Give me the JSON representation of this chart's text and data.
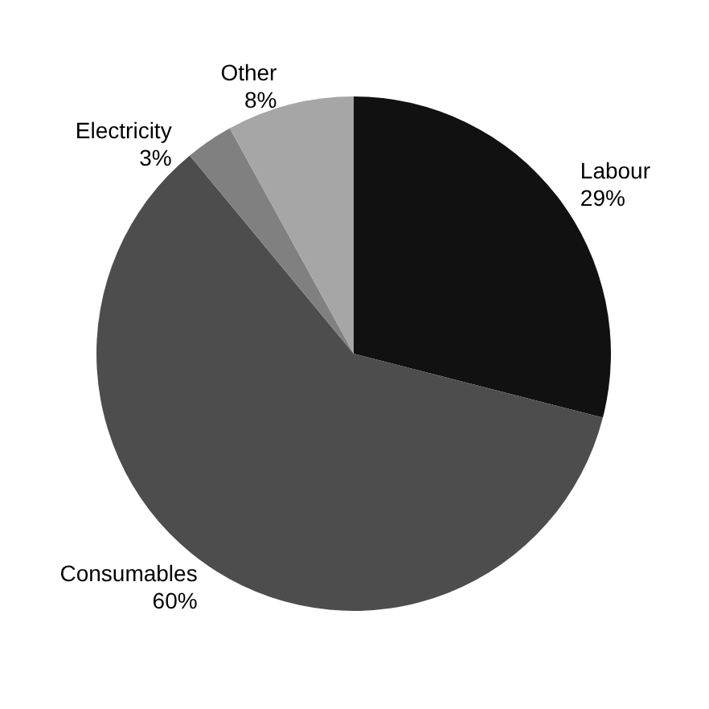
{
  "chart_data": {
    "type": "pie",
    "categories": [
      "Labour",
      "Consumables",
      "Electricity",
      "Other"
    ],
    "values": [
      29,
      60,
      3,
      8
    ],
    "value_labels": [
      "29%",
      "60%",
      "3%",
      "8%"
    ],
    "colors": [
      "#111111",
      "#4d4d4d",
      "#808080",
      "#a6a6a6"
    ],
    "legend": false
  }
}
